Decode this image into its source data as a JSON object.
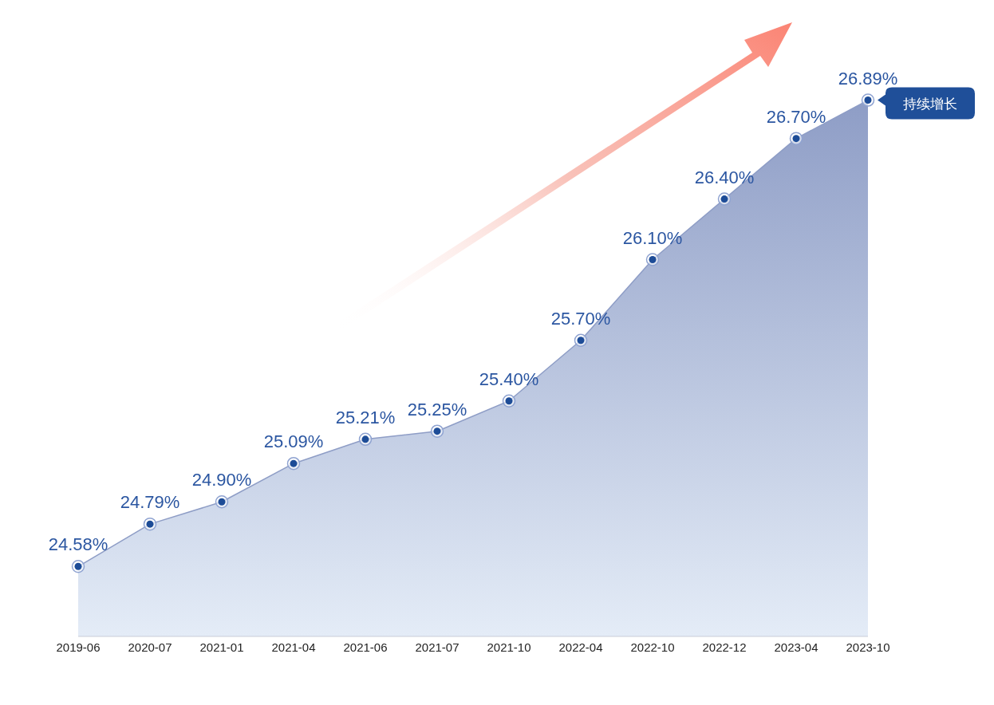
{
  "chart_data": {
    "type": "area",
    "categories": [
      "2019-06",
      "2020-07",
      "2021-01",
      "2021-04",
      "2021-06",
      "2021-07",
      "2021-10",
      "2022-04",
      "2022-10",
      "2022-12",
      "2023-04",
      "2023-10"
    ],
    "values": [
      24.58,
      24.79,
      24.9,
      25.09,
      25.21,
      25.25,
      25.4,
      25.7,
      26.1,
      26.4,
      26.7,
      26.89
    ],
    "value_labels": [
      "24.58%",
      "24.79%",
      "24.90%",
      "25.09%",
      "25.21%",
      "25.25%",
      "25.40%",
      "25.70%",
      "26.10%",
      "26.40%",
      "26.70%",
      "26.89%"
    ],
    "color": "#8e9dc6",
    "marker": "circle",
    "tick_labels": "x",
    "annotations": [
      {
        "text": "持续增长",
        "x": "2023-10",
        "y": 26.89
      }
    ]
  }
}
